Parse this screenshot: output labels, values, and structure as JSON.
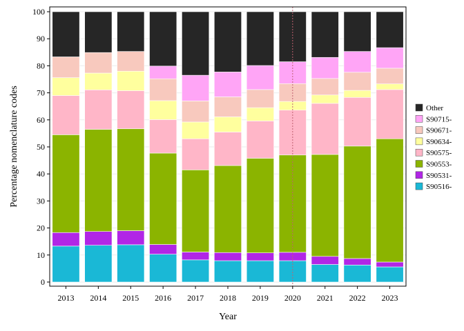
{
  "chart_data": {
    "type": "bar",
    "stacked": true,
    "xlabel": "Year",
    "ylabel": "Percentage nomenclature codes",
    "ylim": [
      0,
      100
    ],
    "yticks": [
      0,
      10,
      20,
      30,
      40,
      50,
      60,
      70,
      80,
      90,
      100
    ],
    "categories": [
      "2013",
      "2014",
      "2015",
      "2016",
      "2017",
      "2018",
      "2019",
      "2020",
      "2021",
      "2022",
      "2023"
    ],
    "reference_line_x": "2020",
    "legend_position": "right",
    "series": [
      {
        "name": "S90516-",
        "color": "#1ab8d6",
        "values": [
          13.3,
          13.6,
          13.8,
          10.3,
          8.2,
          7.9,
          7.9,
          7.9,
          6.5,
          6.3,
          5.6
        ]
      },
      {
        "name": "S90531-",
        "color": "#b126e6",
        "values": [
          5.0,
          5.1,
          5.2,
          3.6,
          2.9,
          3.0,
          2.9,
          3.1,
          3.0,
          2.4,
          1.8
        ]
      },
      {
        "name": "S90553-",
        "color": "#8bb400",
        "values": [
          36.2,
          37.8,
          37.7,
          33.8,
          30.4,
          32.2,
          35.0,
          36.0,
          37.7,
          41.6,
          45.6
        ]
      },
      {
        "name": "S90575-",
        "color": "#ffb6c8",
        "values": [
          14.5,
          14.6,
          14.1,
          12.4,
          11.5,
          12.4,
          13.8,
          16.6,
          18.9,
          18.0,
          18.2
        ]
      },
      {
        "name": "S90634-",
        "color": "#ffff9e",
        "values": [
          6.6,
          6.2,
          7.2,
          7.0,
          6.2,
          5.6,
          4.9,
          3.2,
          3.1,
          2.6,
          2.1
        ]
      },
      {
        "name": "S90671-",
        "color": "#f8c9be",
        "values": [
          7.7,
          7.6,
          7.3,
          8.1,
          7.8,
          7.4,
          6.7,
          6.6,
          6.1,
          6.7,
          5.8
        ]
      },
      {
        "name": "S90715-",
        "color": "#ffa5f6",
        "values": [
          0,
          0,
          0,
          4.7,
          9.5,
          9.2,
          8.9,
          8.1,
          7.8,
          7.7,
          7.6
        ]
      },
      {
        "name": "Other",
        "color": "#262626",
        "values": [
          16.7,
          15.1,
          14.7,
          20.1,
          23.5,
          22.3,
          19.9,
          18.5,
          16.9,
          14.7,
          13.3
        ]
      }
    ]
  }
}
